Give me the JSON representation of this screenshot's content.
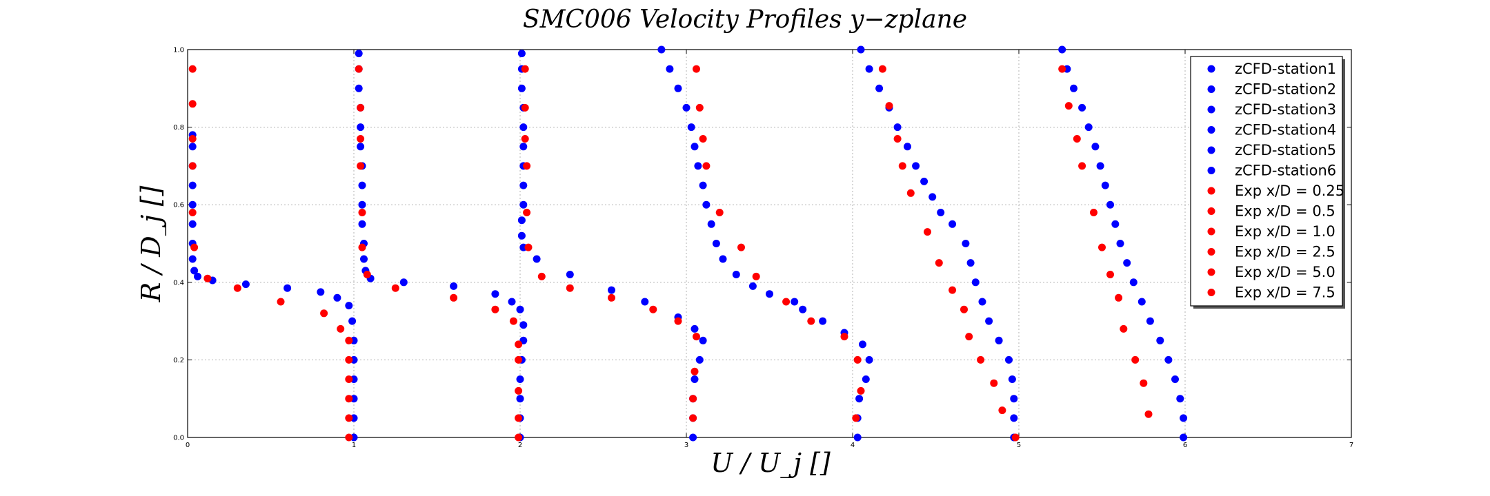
{
  "chart_data": {
    "type": "scatter",
    "title": "SMC006 Velocity Profiles y−zplane",
    "xlabel": "U / U_j  []",
    "ylabel": "R / D_j  []",
    "xlim": [
      0,
      7
    ],
    "ylim": [
      0,
      1.0
    ],
    "grid": true,
    "legend_position": "top-right",
    "x_ticks": [
      "0",
      "1",
      "2",
      "3",
      "4",
      "5",
      "6",
      "7"
    ],
    "y_ticks": [
      "0.0",
      "0.2",
      "0.4",
      "0.6",
      "0.8",
      "1.0"
    ],
    "colors": {
      "cfd": "#0000ff",
      "exp": "#ff0000"
    },
    "series": [
      {
        "name": "zCFD-station1",
        "group": "cfd",
        "points": [
          [
            1.0,
            0.0
          ],
          [
            1.0,
            0.05
          ],
          [
            1.0,
            0.1
          ],
          [
            1.0,
            0.15
          ],
          [
            1.0,
            0.2
          ],
          [
            1.0,
            0.25
          ],
          [
            0.99,
            0.3
          ],
          [
            0.97,
            0.34
          ],
          [
            0.9,
            0.36
          ],
          [
            0.8,
            0.375
          ],
          [
            0.6,
            0.385
          ],
          [
            0.35,
            0.395
          ],
          [
            0.15,
            0.405
          ],
          [
            0.06,
            0.415
          ],
          [
            0.04,
            0.43
          ],
          [
            0.03,
            0.46
          ],
          [
            0.03,
            0.5
          ],
          [
            0.03,
            0.55
          ],
          [
            0.03,
            0.6
          ],
          [
            0.03,
            0.65
          ],
          [
            0.03,
            0.7
          ],
          [
            0.03,
            0.75
          ],
          [
            0.03,
            0.78
          ]
        ]
      },
      {
        "name": "zCFD-station2",
        "group": "cfd",
        "points": [
          [
            2.0,
            0.0
          ],
          [
            2.0,
            0.05
          ],
          [
            2.0,
            0.1
          ],
          [
            2.0,
            0.15
          ],
          [
            2.01,
            0.2
          ],
          [
            2.02,
            0.25
          ],
          [
            2.02,
            0.29
          ],
          [
            2.0,
            0.33
          ],
          [
            1.95,
            0.35
          ],
          [
            1.85,
            0.37
          ],
          [
            1.6,
            0.39
          ],
          [
            1.3,
            0.4
          ],
          [
            1.1,
            0.41
          ],
          [
            1.07,
            0.43
          ],
          [
            1.06,
            0.46
          ],
          [
            1.06,
            0.5
          ],
          [
            1.05,
            0.55
          ],
          [
            1.05,
            0.6
          ],
          [
            1.05,
            0.65
          ],
          [
            1.05,
            0.7
          ],
          [
            1.04,
            0.75
          ],
          [
            1.04,
            0.8
          ],
          [
            1.04,
            0.85
          ],
          [
            1.03,
            0.9
          ],
          [
            1.03,
            0.95
          ],
          [
            1.03,
            0.99
          ]
        ]
      },
      {
        "name": "zCFD-station3",
        "group": "cfd",
        "points": [
          [
            3.04,
            0.0
          ],
          [
            3.04,
            0.05
          ],
          [
            3.04,
            0.1
          ],
          [
            3.05,
            0.15
          ],
          [
            3.08,
            0.2
          ],
          [
            3.1,
            0.25
          ],
          [
            3.05,
            0.28
          ],
          [
            2.95,
            0.31
          ],
          [
            2.75,
            0.35
          ],
          [
            2.55,
            0.38
          ],
          [
            2.3,
            0.42
          ],
          [
            2.1,
            0.46
          ],
          [
            2.02,
            0.49
          ],
          [
            2.01,
            0.52
          ],
          [
            2.01,
            0.56
          ],
          [
            2.02,
            0.6
          ],
          [
            2.02,
            0.65
          ],
          [
            2.02,
            0.7
          ],
          [
            2.02,
            0.75
          ],
          [
            2.02,
            0.8
          ],
          [
            2.02,
            0.85
          ],
          [
            2.01,
            0.9
          ],
          [
            2.01,
            0.95
          ],
          [
            2.01,
            0.99
          ]
        ]
      },
      {
        "name": "zCFD-station4",
        "group": "cfd",
        "points": [
          [
            4.03,
            0.0
          ],
          [
            4.03,
            0.05
          ],
          [
            4.04,
            0.1
          ],
          [
            4.08,
            0.15
          ],
          [
            4.1,
            0.2
          ],
          [
            4.06,
            0.24
          ],
          [
            3.95,
            0.27
          ],
          [
            3.82,
            0.3
          ],
          [
            3.7,
            0.33
          ],
          [
            3.65,
            0.35
          ],
          [
            3.5,
            0.37
          ],
          [
            3.4,
            0.39
          ],
          [
            3.3,
            0.42
          ],
          [
            3.22,
            0.46
          ],
          [
            3.18,
            0.5
          ],
          [
            3.15,
            0.55
          ],
          [
            3.12,
            0.6
          ],
          [
            3.1,
            0.65
          ],
          [
            3.07,
            0.7
          ],
          [
            3.05,
            0.75
          ],
          [
            3.03,
            0.8
          ],
          [
            3.0,
            0.85
          ],
          [
            2.95,
            0.9
          ],
          [
            2.9,
            0.95
          ],
          [
            2.85,
            1.0
          ]
        ]
      },
      {
        "name": "zCFD-station5",
        "group": "cfd",
        "points": [
          [
            4.97,
            0.0
          ],
          [
            4.97,
            0.05
          ],
          [
            4.97,
            0.1
          ],
          [
            4.96,
            0.15
          ],
          [
            4.94,
            0.2
          ],
          [
            4.88,
            0.25
          ],
          [
            4.82,
            0.3
          ],
          [
            4.78,
            0.35
          ],
          [
            4.74,
            0.4
          ],
          [
            4.71,
            0.45
          ],
          [
            4.68,
            0.5
          ],
          [
            4.6,
            0.55
          ],
          [
            4.53,
            0.58
          ],
          [
            4.48,
            0.62
          ],
          [
            4.43,
            0.66
          ],
          [
            4.38,
            0.7
          ],
          [
            4.33,
            0.75
          ],
          [
            4.27,
            0.8
          ],
          [
            4.22,
            0.85
          ],
          [
            4.16,
            0.9
          ],
          [
            4.1,
            0.95
          ],
          [
            4.05,
            1.0
          ]
        ]
      },
      {
        "name": "zCFD-station6",
        "group": "cfd",
        "points": [
          [
            5.99,
            0.0
          ],
          [
            5.99,
            0.05
          ],
          [
            5.97,
            0.1
          ],
          [
            5.94,
            0.15
          ],
          [
            5.9,
            0.2
          ],
          [
            5.85,
            0.25
          ],
          [
            5.79,
            0.3
          ],
          [
            5.74,
            0.35
          ],
          [
            5.69,
            0.4
          ],
          [
            5.65,
            0.45
          ],
          [
            5.61,
            0.5
          ],
          [
            5.58,
            0.55
          ],
          [
            5.55,
            0.6
          ],
          [
            5.52,
            0.65
          ],
          [
            5.49,
            0.7
          ],
          [
            5.46,
            0.75
          ],
          [
            5.42,
            0.8
          ],
          [
            5.38,
            0.85
          ],
          [
            5.33,
            0.9
          ],
          [
            5.29,
            0.95
          ],
          [
            5.26,
            1.0
          ]
        ]
      },
      {
        "name": "Exp x/D = 0.25",
        "group": "exp",
        "points": [
          [
            0.97,
            0.0
          ],
          [
            0.97,
            0.05
          ],
          [
            0.97,
            0.1
          ],
          [
            0.97,
            0.15
          ],
          [
            0.97,
            0.2
          ],
          [
            0.97,
            0.25
          ],
          [
            0.92,
            0.28
          ],
          [
            0.82,
            0.32
          ],
          [
            0.56,
            0.35
          ],
          [
            0.3,
            0.385
          ],
          [
            0.12,
            0.41
          ],
          [
            0.04,
            0.49
          ],
          [
            0.03,
            0.58
          ],
          [
            0.03,
            0.7
          ],
          [
            0.03,
            0.77
          ],
          [
            0.03,
            0.86
          ],
          [
            0.03,
            0.95
          ]
        ]
      },
      {
        "name": "Exp x/D = 0.5",
        "group": "exp",
        "points": [
          [
            1.99,
            0.0
          ],
          [
            1.99,
            0.05
          ],
          [
            1.99,
            0.12
          ],
          [
            1.99,
            0.2
          ],
          [
            1.99,
            0.24
          ],
          [
            1.96,
            0.3
          ],
          [
            1.85,
            0.33
          ],
          [
            1.6,
            0.36
          ],
          [
            1.25,
            0.385
          ],
          [
            1.08,
            0.42
          ],
          [
            1.05,
            0.49
          ],
          [
            1.05,
            0.58
          ],
          [
            1.04,
            0.7
          ],
          [
            1.04,
            0.77
          ],
          [
            1.04,
            0.85
          ],
          [
            1.03,
            0.95
          ]
        ]
      },
      {
        "name": "Exp x/D = 1.0",
        "group": "exp",
        "points": [
          [
            3.04,
            0.05
          ],
          [
            3.04,
            0.1
          ],
          [
            3.05,
            0.17
          ],
          [
            3.06,
            0.26
          ],
          [
            2.95,
            0.3
          ],
          [
            2.8,
            0.33
          ],
          [
            2.55,
            0.36
          ],
          [
            2.3,
            0.385
          ],
          [
            2.13,
            0.415
          ],
          [
            2.05,
            0.49
          ],
          [
            2.04,
            0.58
          ],
          [
            2.04,
            0.7
          ],
          [
            2.03,
            0.77
          ],
          [
            2.03,
            0.85
          ],
          [
            2.03,
            0.95
          ]
        ]
      },
      {
        "name": "Exp x/D = 2.5",
        "group": "exp",
        "points": [
          [
            4.02,
            0.05
          ],
          [
            4.05,
            0.12
          ],
          [
            4.03,
            0.2
          ],
          [
            3.95,
            0.26
          ],
          [
            3.75,
            0.3
          ],
          [
            3.6,
            0.35
          ],
          [
            3.42,
            0.415
          ],
          [
            3.33,
            0.49
          ],
          [
            3.2,
            0.58
          ],
          [
            3.12,
            0.7
          ],
          [
            3.1,
            0.77
          ],
          [
            3.08,
            0.85
          ],
          [
            3.06,
            0.95
          ]
        ]
      },
      {
        "name": "Exp x/D = 5.0",
        "group": "exp",
        "points": [
          [
            4.98,
            0.0
          ],
          [
            4.9,
            0.07
          ],
          [
            4.85,
            0.14
          ],
          [
            4.77,
            0.2
          ],
          [
            4.7,
            0.26
          ],
          [
            4.67,
            0.33
          ],
          [
            4.6,
            0.38
          ],
          [
            4.52,
            0.45
          ],
          [
            4.45,
            0.53
          ],
          [
            4.35,
            0.63
          ],
          [
            4.3,
            0.7
          ],
          [
            4.27,
            0.77
          ],
          [
            4.22,
            0.855
          ],
          [
            4.18,
            0.95
          ]
        ]
      },
      {
        "name": "Exp x/D = 7.5",
        "group": "exp",
        "points": [
          [
            5.78,
            0.06
          ],
          [
            5.75,
            0.14
          ],
          [
            5.7,
            0.2
          ],
          [
            5.63,
            0.28
          ],
          [
            5.6,
            0.36
          ],
          [
            5.55,
            0.42
          ],
          [
            5.5,
            0.49
          ],
          [
            5.45,
            0.58
          ],
          [
            5.38,
            0.7
          ],
          [
            5.35,
            0.77
          ],
          [
            5.3,
            0.855
          ],
          [
            5.26,
            0.95
          ]
        ]
      }
    ]
  }
}
